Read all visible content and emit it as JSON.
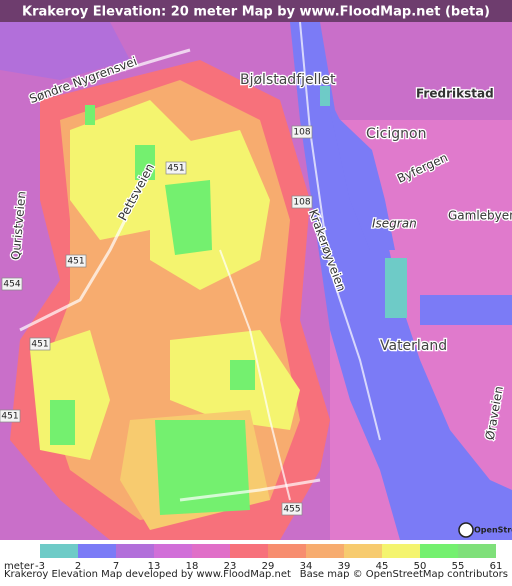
{
  "header": {
    "title": "Krakeroy Elevation: 20 meter Map by www.FloodMap.net (beta)"
  },
  "map": {
    "labels": [
      "Bjølstadfjellet",
      "Fredrikstad",
      "Cicignon",
      "Isegran",
      "Gamlebyen",
      "Vaterland",
      "Søndre Nygrensvei",
      "Pettsveien",
      "Quristveien",
      "Krakerøyveien",
      "Byfergen",
      "Øraveien",
      "108",
      "108",
      "451",
      "451",
      "454",
      "451",
      "451",
      "455",
      "OpenStreetMap"
    ]
  },
  "legend": {
    "unit": "meter",
    "values": [
      -3,
      2,
      7,
      13,
      18,
      23,
      29,
      34,
      39,
      45,
      50,
      55,
      61
    ],
    "colors": [
      "#6ecbc7",
      "#7b7bf6",
      "#b26fda",
      "#d16fd8",
      "#e06fc8",
      "#f7717b",
      "#f78d6f",
      "#f7ac6f",
      "#f7cb6f",
      "#f4f46f",
      "#74f06f",
      "#7fe07a"
    ]
  },
  "footer": {
    "left": "Krakeroy Elevation Map developed by www.FloodMap.net",
    "right": "Base map © OpenStreetMap contributors"
  }
}
